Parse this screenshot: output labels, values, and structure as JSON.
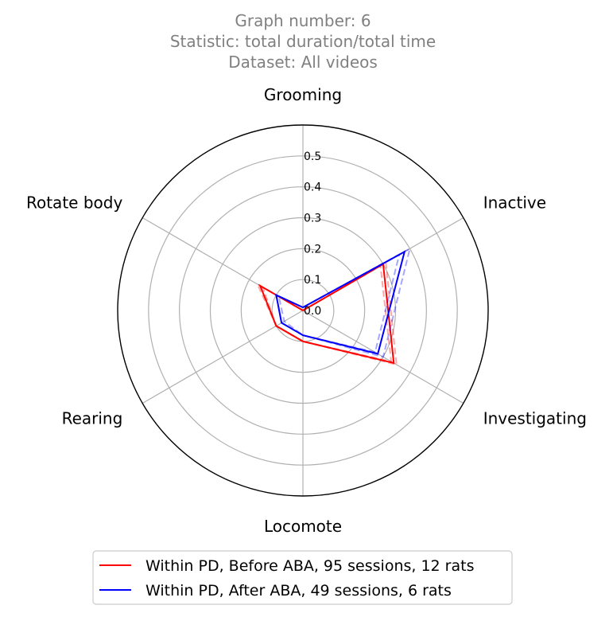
{
  "chart_data": {
    "type": "radar",
    "title_lines": [
      "Graph number: 6",
      "Statistic: total duration/total time",
      "Dataset: All videos"
    ],
    "axes": [
      "Grooming",
      "Inactive",
      "Investigating",
      "Locomote",
      "Rearing",
      "Rotate body"
    ],
    "radial_ticks": [
      "0.0",
      "0.1",
      "0.2",
      "0.3",
      "0.4",
      "0.5"
    ],
    "radial_tick_values": [
      0.0,
      0.1,
      0.2,
      0.3,
      0.4,
      0.5
    ],
    "rlim": [
      0,
      0.6
    ],
    "grid": true,
    "legend_position": "bottom",
    "series": [
      {
        "name": "Within PD, Before ABA, 95 sessions, 12 rats",
        "color": "#ff0000",
        "values": [
          0.0,
          0.3,
          0.34,
          0.1,
          0.1,
          0.16
        ],
        "band_low": [
          0.0,
          0.29,
          0.33,
          0.1,
          0.1,
          0.15
        ],
        "band_high": [
          0.0,
          0.31,
          0.35,
          0.1,
          0.1,
          0.17
        ]
      },
      {
        "name": "Within PD, After ABA, 49 sessions, 6 rats",
        "color": "#0000ff",
        "values": [
          0.01,
          0.38,
          0.28,
          0.08,
          0.08,
          0.1
        ],
        "band_low": [
          0.01,
          0.36,
          0.27,
          0.08,
          0.07,
          0.09
        ],
        "band_high": [
          0.01,
          0.4,
          0.3,
          0.08,
          0.08,
          0.1
        ]
      }
    ]
  }
}
